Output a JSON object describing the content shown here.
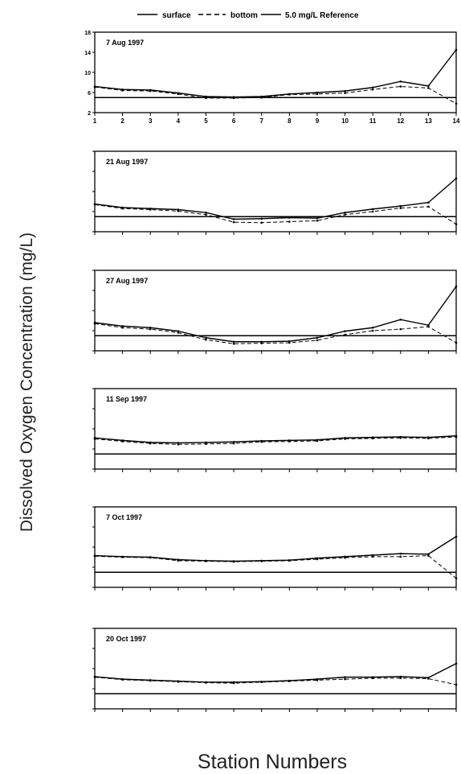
{
  "figure": {
    "ylabel": "Dissolved Oxygen Concentration (mg/L)",
    "xlabel": "Station Numbers",
    "legend": [
      "surface",
      "bottom",
      "5.0 mg/L Reference"
    ]
  },
  "chart_data": [
    {
      "type": "line",
      "title": "7 Aug 1997",
      "x": [
        1,
        2,
        3,
        4,
        5,
        6,
        7,
        8,
        9,
        10,
        11,
        12,
        13,
        14
      ],
      "xticks": [
        "1",
        "2",
        "3",
        "4",
        "5",
        "6",
        "7",
        "8",
        "9",
        "10",
        "11",
        "12",
        "13",
        "14"
      ],
      "yticks": [
        "2",
        "6",
        "10",
        "14",
        "18"
      ],
      "ylim": [
        2,
        18
      ],
      "reference": 5.0,
      "series": [
        {
          "name": "surface",
          "values": [
            7.2,
            6.6,
            6.5,
            5.9,
            5.2,
            5.1,
            5.2,
            5.7,
            6.0,
            6.3,
            7.0,
            8.2,
            7.3,
            14.5
          ]
        },
        {
          "name": "bottom",
          "values": [
            7.1,
            6.4,
            6.3,
            5.7,
            4.9,
            4.9,
            5.0,
            5.6,
            5.7,
            5.9,
            6.6,
            7.2,
            6.9,
            3.8
          ]
        }
      ]
    },
    {
      "type": "line",
      "title": "21 Aug 1997",
      "x": [
        1,
        2,
        3,
        4,
        5,
        6,
        7,
        8,
        9,
        10,
        11,
        12,
        13,
        14
      ],
      "ylim": [
        2,
        18
      ],
      "reference": 5.0,
      "series": [
        {
          "name": "surface",
          "values": [
            7.5,
            6.8,
            6.6,
            6.4,
            5.8,
            4.5,
            4.6,
            4.8,
            4.7,
            5.8,
            6.5,
            7.1,
            7.8,
            12.6
          ]
        },
        {
          "name": "bottom",
          "values": [
            7.4,
            6.6,
            6.4,
            6.1,
            5.4,
            3.9,
            3.8,
            4.0,
            4.2,
            5.4,
            6.0,
            6.7,
            7.0,
            3.5
          ]
        }
      ]
    },
    {
      "type": "line",
      "title": "27 Aug 1997",
      "x": [
        1,
        2,
        3,
        4,
        5,
        6,
        7,
        8,
        9,
        10,
        11,
        12,
        13,
        14
      ],
      "ylim": [
        2,
        18
      ],
      "reference": 5.0,
      "series": [
        {
          "name": "surface",
          "values": [
            7.6,
            6.9,
            6.6,
            5.9,
            4.6,
            3.8,
            3.8,
            3.9,
            4.6,
            5.9,
            6.6,
            8.2,
            7.1,
            14.8
          ]
        },
        {
          "name": "bottom",
          "values": [
            7.4,
            6.6,
            6.3,
            5.6,
            4.2,
            3.4,
            3.5,
            3.6,
            4.1,
            5.2,
            6.0,
            6.3,
            6.8,
            3.6
          ]
        }
      ]
    },
    {
      "type": "line",
      "title": "11 Sep 1997",
      "x": [
        1,
        2,
        3,
        4,
        5,
        6,
        7,
        8,
        9,
        10,
        11,
        12,
        13,
        14
      ],
      "ylim": [
        2,
        18
      ],
      "reference": 5.0,
      "series": [
        {
          "name": "surface",
          "values": [
            8.2,
            7.7,
            7.3,
            7.2,
            7.3,
            7.4,
            7.6,
            7.7,
            7.8,
            8.2,
            8.3,
            8.4,
            8.3,
            8.6
          ]
        },
        {
          "name": "bottom",
          "values": [
            8.0,
            7.5,
            7.1,
            6.9,
            7.0,
            7.1,
            7.4,
            7.5,
            7.6,
            8.0,
            8.1,
            8.2,
            8.1,
            8.4
          ]
        }
      ]
    },
    {
      "type": "line",
      "title": "7 Oct 1997",
      "x": [
        1,
        2,
        3,
        4,
        5,
        6,
        7,
        8,
        9,
        10,
        11,
        12,
        13,
        14
      ],
      "ylim": [
        2,
        18
      ],
      "reference": 5.0,
      "series": [
        {
          "name": "surface",
          "values": [
            8.3,
            8.1,
            8.0,
            7.5,
            7.3,
            7.2,
            7.3,
            7.4,
            7.8,
            8.1,
            8.4,
            8.7,
            8.6,
            12.1
          ]
        },
        {
          "name": "bottom",
          "values": [
            8.2,
            8.0,
            7.9,
            7.3,
            7.2,
            7.1,
            7.2,
            7.3,
            7.6,
            7.9,
            8.1,
            8.1,
            8.3,
            3.8
          ]
        }
      ]
    },
    {
      "type": "line",
      "title": "20 Oct 1997",
      "x": [
        1,
        2,
        3,
        4,
        5,
        6,
        7,
        8,
        9,
        10,
        11,
        12,
        13,
        14
      ],
      "ylim": [
        2,
        18
      ],
      "reference": 5.0,
      "series": [
        {
          "name": "surface",
          "values": [
            8.4,
            7.9,
            7.7,
            7.5,
            7.3,
            7.3,
            7.4,
            7.6,
            7.9,
            8.3,
            8.3,
            8.4,
            8.2,
            11.0
          ]
        },
        {
          "name": "bottom",
          "values": [
            8.3,
            7.8,
            7.6,
            7.4,
            7.2,
            7.1,
            7.3,
            7.5,
            7.7,
            7.9,
            8.1,
            8.1,
            8.0,
            6.8
          ]
        }
      ]
    }
  ]
}
